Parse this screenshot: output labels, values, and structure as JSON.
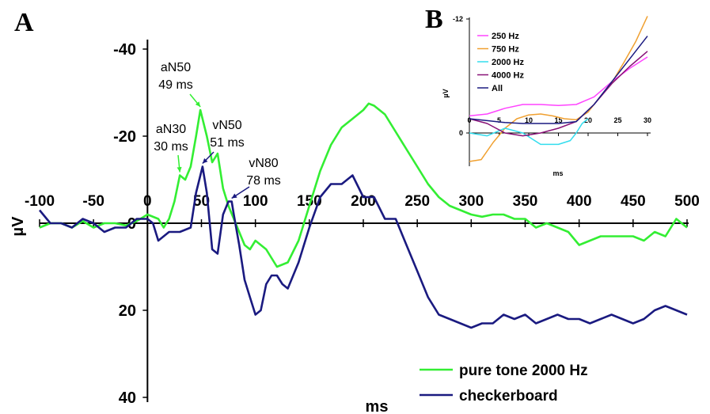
{
  "panels": {
    "a": "A",
    "b": "B"
  },
  "chart_data": [
    {
      "type": "line",
      "ylabel": "µV",
      "xlabel": "ms",
      "xlim": [
        -100,
        500
      ],
      "ylim": [
        -40,
        40
      ],
      "y_inverted": true,
      "x_ticks": [
        "-100",
        "-50",
        "0",
        "50",
        "100",
        "150",
        "200",
        "250",
        "300",
        "350",
        "400",
        "450",
        "500"
      ],
      "y_ticks": [
        "-40",
        "-20",
        "0",
        "20",
        "40"
      ],
      "grid": false,
      "legend_position": "bottom-right",
      "series": [
        {
          "name": "pure tone 2000 Hz",
          "color": "#33ee33",
          "x": [
            -100,
            -90,
            -80,
            -70,
            -60,
            -50,
            -40,
            -30,
            -20,
            -10,
            0,
            10,
            15,
            20,
            25,
            30,
            35,
            40,
            45,
            49,
            55,
            60,
            65,
            70,
            75,
            80,
            85,
            90,
            95,
            100,
            110,
            120,
            130,
            140,
            150,
            160,
            170,
            180,
            190,
            200,
            205,
            210,
            220,
            230,
            240,
            250,
            260,
            270,
            280,
            290,
            300,
            310,
            320,
            330,
            340,
            350,
            360,
            370,
            380,
            390,
            400,
            410,
            420,
            430,
            440,
            450,
            460,
            470,
            480,
            490,
            500
          ],
          "y": [
            1,
            0,
            0,
            1,
            -0.5,
            1,
            0,
            0,
            0.5,
            -0.5,
            -2,
            -1,
            1,
            -1,
            -5,
            -11,
            -10,
            -13,
            -20,
            -26,
            -20,
            -14,
            -16,
            -8,
            -4,
            -1,
            2,
            5,
            6,
            4,
            6,
            10,
            9,
            4,
            -4,
            -12,
            -18,
            -22,
            -24,
            -26,
            -27.5,
            -27,
            -25,
            -21,
            -17,
            -13,
            -9,
            -6,
            -4,
            -3,
            -2,
            -1.5,
            -2,
            -2,
            -1,
            -1,
            1,
            0,
            1,
            2,
            5,
            4,
            3,
            3,
            3,
            3,
            4,
            2,
            3,
            -1,
            1
          ]
        },
        {
          "name": "checkerboard",
          "color": "#1a1a80",
          "x": [
            -100,
            -90,
            -80,
            -70,
            -60,
            -50,
            -40,
            -30,
            -20,
            -10,
            0,
            5,
            10,
            20,
            30,
            40,
            45,
            51,
            55,
            60,
            65,
            70,
            75,
            78,
            80,
            85,
            90,
            95,
            100,
            105,
            110,
            115,
            120,
            125,
            130,
            140,
            150,
            160,
            170,
            180,
            190,
            200,
            210,
            220,
            230,
            240,
            250,
            260,
            270,
            280,
            290,
            300,
            310,
            320,
            330,
            340,
            350,
            360,
            370,
            380,
            390,
            400,
            410,
            420,
            430,
            440,
            450,
            460,
            470,
            480,
            490,
            500
          ],
          "y": [
            -3,
            0,
            0,
            1,
            -1,
            0,
            2,
            1,
            1,
            -1,
            -1,
            0,
            4,
            2,
            2,
            1,
            -7,
            -13,
            -7,
            6,
            7,
            -2,
            -5,
            -5,
            -2,
            5,
            13,
            17,
            21,
            20,
            14,
            12,
            12,
            14,
            15,
            9,
            1,
            -6,
            -9,
            -9,
            -11,
            -6,
            -6,
            -1,
            -1,
            5,
            11,
            17,
            21,
            22,
            23,
            24,
            23,
            23,
            21,
            22,
            21,
            23,
            22,
            21,
            22,
            22,
            23,
            22,
            21,
            22,
            23,
            22,
            20,
            19,
            20,
            21
          ]
        }
      ],
      "annotations": [
        {
          "text_line1": "aN50",
          "text_line2": "49 ms",
          "x": 49,
          "y": -26
        },
        {
          "text_line1": "aN30",
          "text_line2": "30 ms",
          "x": 30,
          "y": -11
        },
        {
          "text_line1": "vN50",
          "text_line2": "51 ms",
          "x": 51,
          "y": -13
        },
        {
          "text_line1": "vN80",
          "text_line2": "78 ms",
          "x": 78,
          "y": -5
        }
      ]
    },
    {
      "type": "line",
      "ylabel": "µV",
      "xlabel": "ms",
      "xlim": [
        0,
        30
      ],
      "ylim": [
        -12,
        3
      ],
      "y_inverted": true,
      "x_ticks": [
        "0",
        "5",
        "10",
        "15",
        "20",
        "25",
        "30"
      ],
      "y_ticks": [
        "-12",
        "0"
      ],
      "grid": false,
      "legend_position": "top-left",
      "series": [
        {
          "name": "250 Hz",
          "color": "#ff44ff",
          "x": [
            0,
            3,
            6,
            9,
            12,
            15,
            18,
            21,
            24,
            27,
            30
          ],
          "y": [
            -1.8,
            -2.0,
            -2.6,
            -3.0,
            -3.0,
            -2.9,
            -3.0,
            -3.8,
            -5.4,
            -6.8,
            -8
          ]
        },
        {
          "name": "750 Hz",
          "color": "#f0a030",
          "x": [
            0,
            2,
            4,
            6,
            8,
            10,
            12,
            14,
            16,
            18,
            20,
            22,
            24,
            26,
            28,
            30
          ],
          "y": [
            3,
            2.8,
            1,
            -0.5,
            -1.5,
            -1.9,
            -2.0,
            -1.8,
            -1.5,
            -1.4,
            -2.2,
            -3.8,
            -5.3,
            -7.4,
            -9.6,
            -12.3
          ]
        },
        {
          "name": "2000 Hz",
          "color": "#33ddee",
          "x": [
            0,
            3,
            6,
            9,
            12,
            15,
            17,
            18,
            19,
            20
          ],
          "y": [
            0,
            0.3,
            -0.5,
            0,
            1.2,
            1.2,
            0.8,
            0,
            -1.0,
            -1.5
          ]
        },
        {
          "name": "4000 Hz",
          "color": "#881177",
          "x": [
            0,
            3,
            6,
            9,
            12,
            15,
            18,
            21,
            24,
            27,
            30
          ],
          "y": [
            -1.5,
            -1.0,
            0,
            0.3,
            0,
            -0.5,
            -1.2,
            -3.0,
            -5.2,
            -7.0,
            -8.6
          ]
        },
        {
          "name": "All",
          "color": "#1a1a80",
          "x": [
            0,
            3,
            6,
            9,
            12,
            15,
            18,
            21,
            24,
            27,
            30
          ],
          "y": [
            -1.5,
            -1.3,
            -1.1,
            -1.0,
            -1.0,
            -1.0,
            -1.2,
            -3.0,
            -5.4,
            -7.8,
            -10.2
          ]
        }
      ]
    }
  ]
}
